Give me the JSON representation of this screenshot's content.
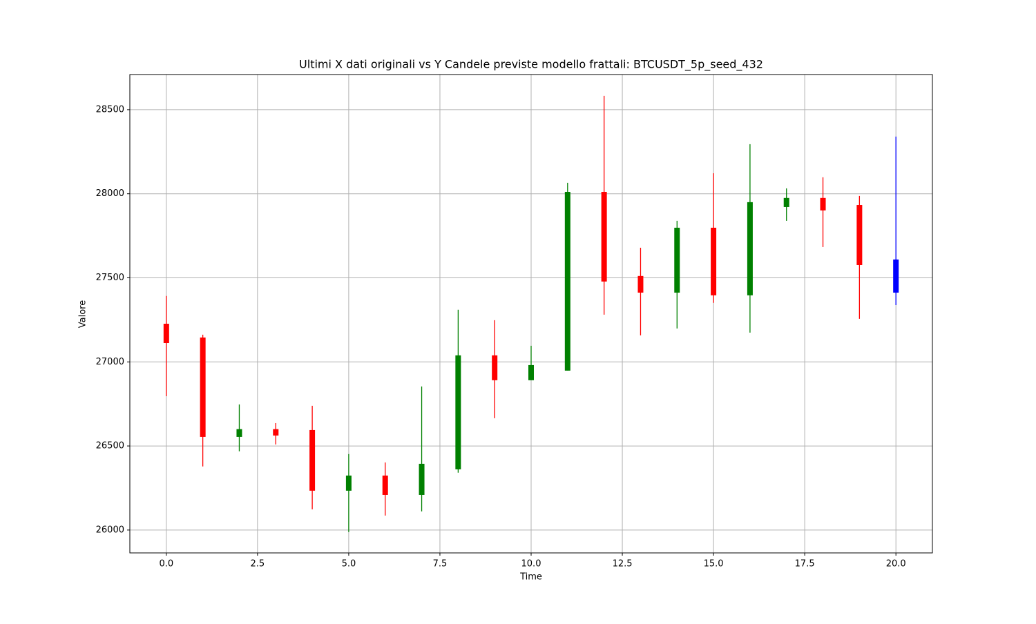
{
  "chart_data": {
    "type": "candlestick",
    "title": "Ultimi X dati originali vs Y Candele previste modello frattali: BTCUSDT_5p_seed_432",
    "xlabel": "Time",
    "ylabel": "Valore",
    "x": [
      0,
      1,
      2,
      3,
      4,
      5,
      6,
      7,
      8,
      9,
      10,
      11,
      12,
      13,
      14,
      15,
      16,
      17,
      18,
      19,
      20
    ],
    "open": [
      27227,
      27145,
      26554,
      26600,
      26595,
      26234,
      26324,
      26209,
      26361,
      27039,
      26891,
      26948,
      28011,
      27511,
      27412,
      27798,
      27396,
      27921,
      27975,
      27933,
      27412
    ],
    "high": [
      27392,
      27162,
      26747,
      26636,
      26739,
      26452,
      26402,
      26854,
      27310,
      27248,
      27096,
      28065,
      28582,
      27679,
      27839,
      28122,
      28295,
      28032,
      28098,
      27987,
      28340
    ],
    "low": [
      26796,
      26378,
      26468,
      26509,
      26123,
      25988,
      26086,
      26111,
      26341,
      26665,
      26891,
      26948,
      27281,
      27158,
      27199,
      27351,
      27174,
      27839,
      27683,
      27256,
      27338
    ],
    "close": [
      27112,
      26554,
      26600,
      26562,
      26234,
      26324,
      26209,
      26394,
      27039,
      26891,
      26981,
      28011,
      27478,
      27412,
      27798,
      27396,
      27950,
      27975,
      27901,
      27576,
      27609
    ],
    "colors": [
      "red",
      "red",
      "green",
      "red",
      "red",
      "green",
      "red",
      "green",
      "green",
      "red",
      "green",
      "green",
      "red",
      "red",
      "green",
      "red",
      "green",
      "green",
      "red",
      "red",
      "blue"
    ],
    "xlim": [
      -1.0,
      21.0
    ],
    "xticks": [
      {
        "value": 0,
        "label": "0.0"
      },
      2.5,
      {
        "value": 5,
        "label": "5.0"
      },
      7.5,
      {
        "value": 10,
        "label": "10.0"
      },
      12.5,
      {
        "value": 15,
        "label": "15.0"
      },
      17.5,
      {
        "value": 20,
        "label": "20.0"
      }
    ],
    "ylim": [
      25864,
      28709
    ],
    "yticks": [
      26000,
      26500,
      27000,
      27500,
      28000,
      28500
    ],
    "grid": true
  }
}
